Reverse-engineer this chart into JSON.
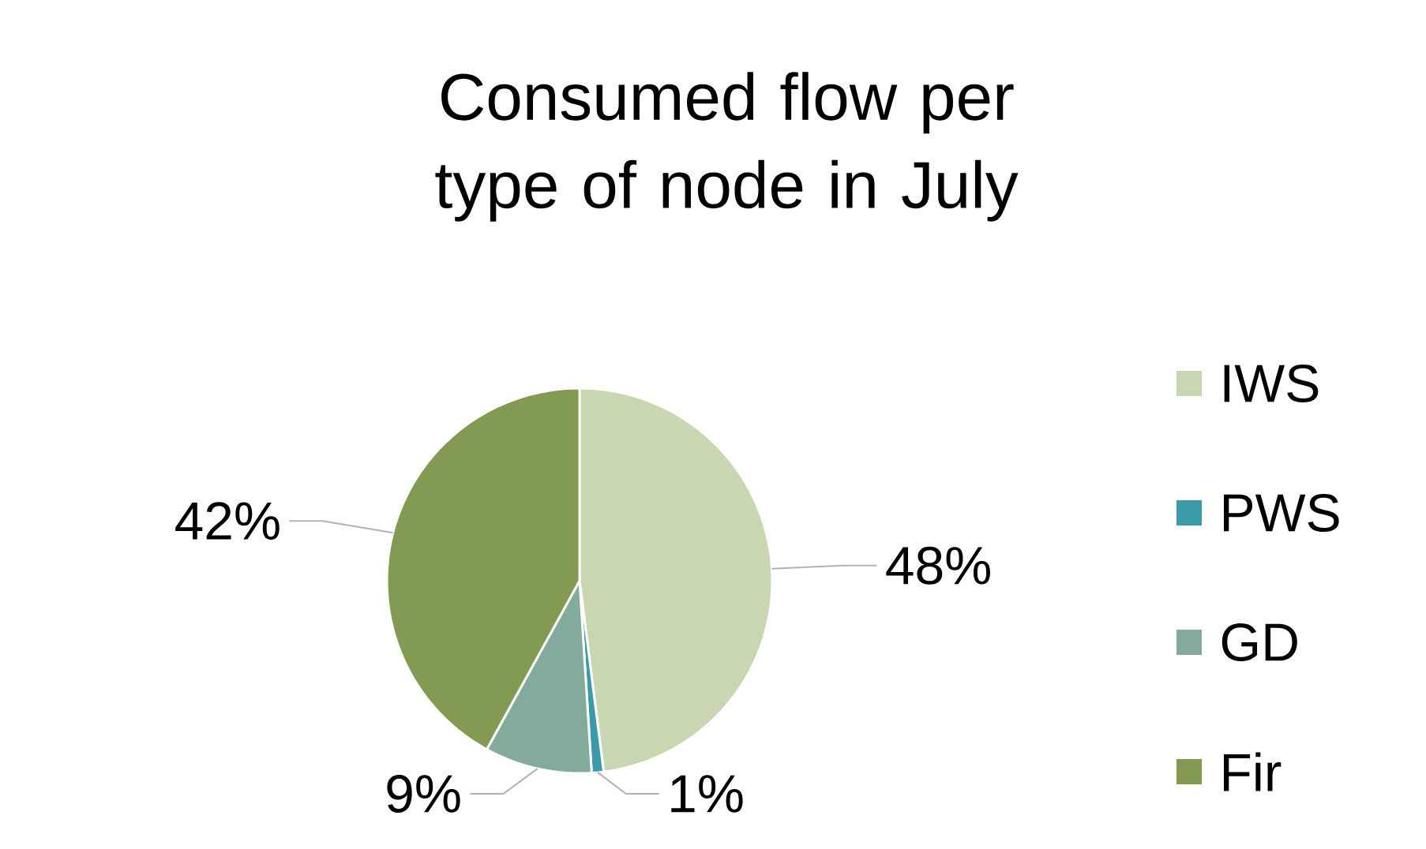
{
  "chart_data": {
    "type": "pie",
    "title": "Consumed flow per type of node in July",
    "categories": [
      "IWS",
      "PWS",
      "GD",
      "Fir"
    ],
    "values": [
      48,
      1,
      9,
      42
    ],
    "colors": [
      "#c9d6b2",
      "#3a9aa8",
      "#82ab9c",
      "#839a52"
    ],
    "value_labels": [
      "48%",
      "1%",
      "9%",
      "42%"
    ],
    "legend": "right"
  }
}
